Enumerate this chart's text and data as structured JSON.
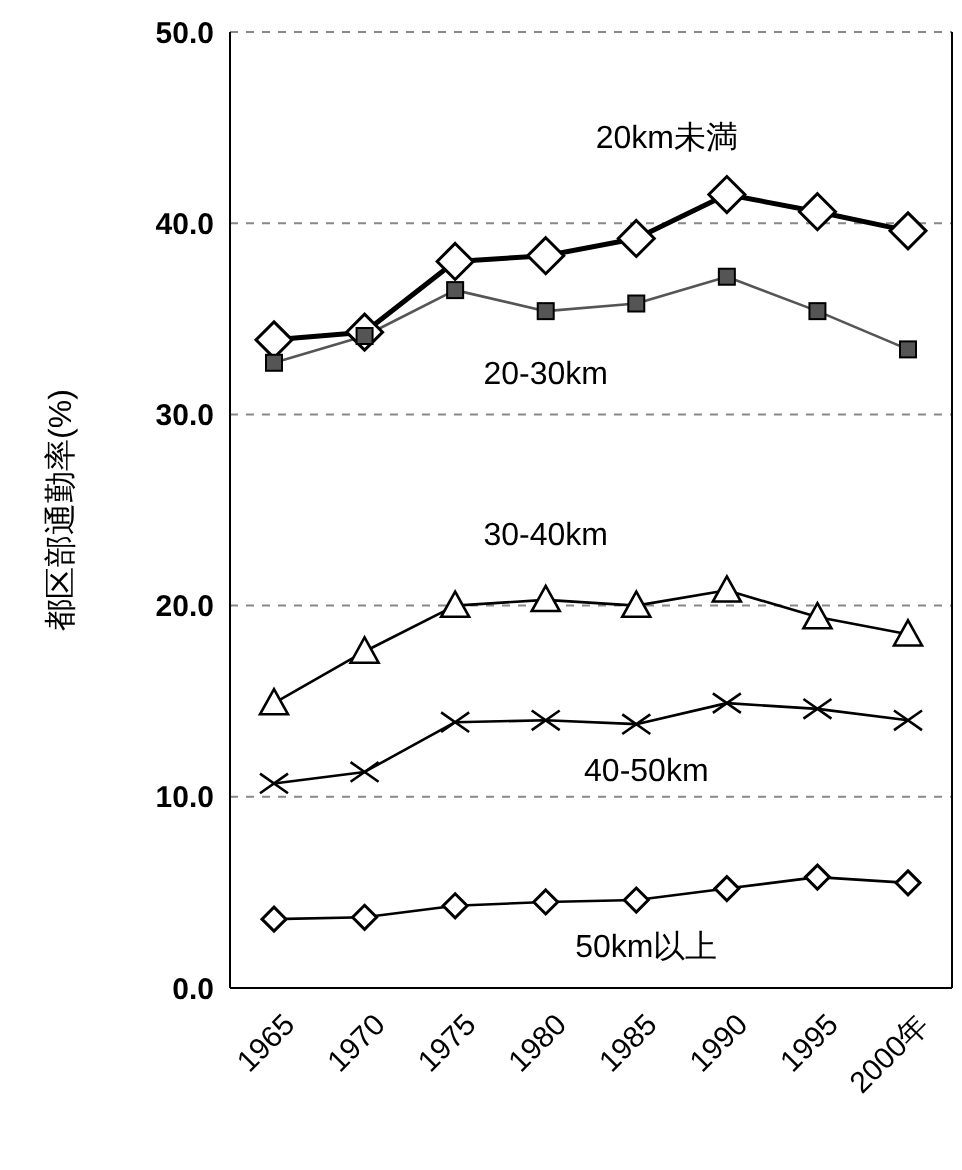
{
  "chart_data": {
    "type": "line",
    "ylabel": "都区部通勤率(%)",
    "categories": [
      "1965",
      "1970",
      "1975",
      "1980",
      "1985",
      "1990",
      "1995",
      "2000年"
    ],
    "series": [
      {
        "name": "20km未満",
        "color": "#000000",
        "marker": "diamond",
        "values": [
          33.9,
          34.3,
          38.0,
          38.3,
          39.2,
          41.5,
          40.6,
          39.6
        ]
      },
      {
        "name": "20-30km",
        "color": "#555555",
        "marker": "square",
        "values": [
          32.7,
          34.1,
          36.5,
          35.4,
          35.8,
          37.2,
          35.4,
          33.4
        ]
      },
      {
        "name": "30-40km",
        "color": "#000000",
        "marker": "triangle",
        "values": [
          14.9,
          17.6,
          20.0,
          20.3,
          20.0,
          20.8,
          19.4,
          18.5
        ]
      },
      {
        "name": "40-50km",
        "color": "#000000",
        "marker": "cross",
        "values": [
          10.7,
          11.3,
          13.9,
          14.0,
          13.8,
          14.9,
          14.6,
          14.0
        ]
      },
      {
        "name": "50km以上",
        "color": "#000000",
        "marker": "diamond",
        "values": [
          3.6,
          3.7,
          4.3,
          4.5,
          4.6,
          5.2,
          5.8,
          5.5
        ]
      }
    ],
    "ylim": [
      0,
      50
    ],
    "yticks": [
      {
        "value": 0,
        "label": "0.0"
      },
      {
        "value": 10,
        "label": "10.0"
      },
      {
        "value": 20,
        "label": "20.0"
      },
      {
        "value": 30,
        "label": "30.0"
      },
      {
        "value": 40,
        "label": "40.0"
      },
      {
        "value": 50,
        "label": "50.0"
      }
    ],
    "grid": "y",
    "legend": false,
    "line_style": "solid"
  }
}
